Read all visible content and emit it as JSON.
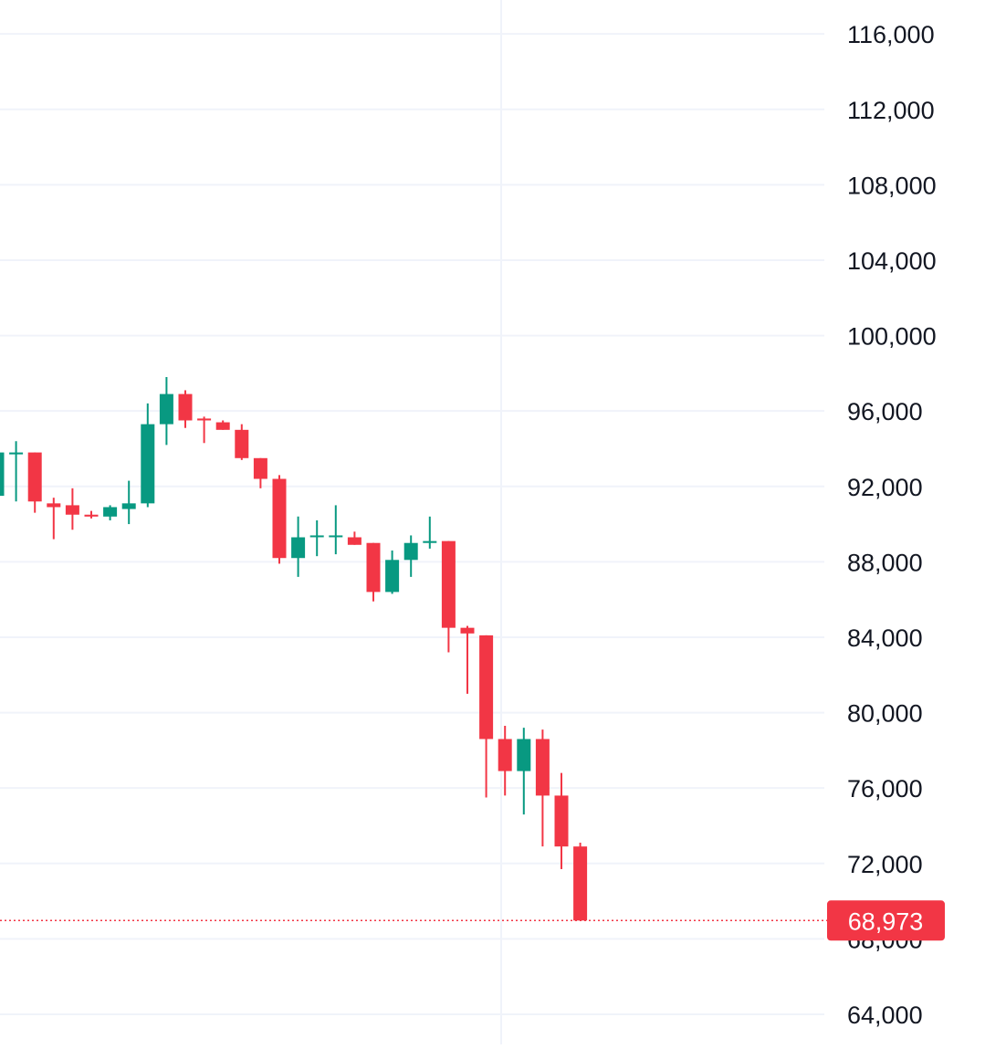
{
  "chart_data": {
    "type": "candlestick",
    "ylim": [
      62400,
      117800
    ],
    "y_ticks": [
      64000,
      68000,
      72000,
      76000,
      80000,
      84000,
      88000,
      92000,
      96000,
      100000,
      104000,
      108000,
      112000,
      116000
    ],
    "y_tick_labels": [
      "64,000",
      "68,000",
      "72,000",
      "76,000",
      "80,000",
      "84,000",
      "88,000",
      "92,000",
      "96,000",
      "100,000",
      "104,000",
      "108,000",
      "112,000",
      "116,000"
    ],
    "grid": true,
    "colors": {
      "up": "#089981",
      "down": "#f23645",
      "grid": "#f0f3fa",
      "text": "#131722"
    },
    "current_price": 68973,
    "current_price_label": "68,973",
    "candles": [
      {
        "o": 91500,
        "h": 93900,
        "l": 91500,
        "c": 93800
      },
      {
        "o": 93700,
        "h": 94400,
        "l": 91200,
        "c": 93800
      },
      {
        "o": 93800,
        "h": 93800,
        "l": 90600,
        "c": 91200
      },
      {
        "o": 91100,
        "h": 91400,
        "l": 89200,
        "c": 90900
      },
      {
        "o": 91000,
        "h": 91900,
        "l": 89700,
        "c": 90500
      },
      {
        "o": 90500,
        "h": 90700,
        "l": 90300,
        "c": 90400
      },
      {
        "o": 90400,
        "h": 91000,
        "l": 90200,
        "c": 90900
      },
      {
        "o": 90800,
        "h": 92300,
        "l": 90000,
        "c": 91100
      },
      {
        "o": 91100,
        "h": 96400,
        "l": 90900,
        "c": 95300
      },
      {
        "o": 95300,
        "h": 97800,
        "l": 94200,
        "c": 96900
      },
      {
        "o": 96900,
        "h": 97100,
        "l": 95100,
        "c": 95500
      },
      {
        "o": 95600,
        "h": 95700,
        "l": 94300,
        "c": 95500
      },
      {
        "o": 95400,
        "h": 95500,
        "l": 95000,
        "c": 95000
      },
      {
        "o": 95000,
        "h": 95300,
        "l": 93400,
        "c": 93500
      },
      {
        "o": 93500,
        "h": 93500,
        "l": 91900,
        "c": 92400
      },
      {
        "o": 92400,
        "h": 92600,
        "l": 87900,
        "c": 88200
      },
      {
        "o": 88200,
        "h": 90400,
        "l": 87200,
        "c": 89300
      },
      {
        "o": 89400,
        "h": 90200,
        "l": 88300,
        "c": 89400
      },
      {
        "o": 89400,
        "h": 91000,
        "l": 88400,
        "c": 89400
      },
      {
        "o": 89300,
        "h": 89600,
        "l": 88900,
        "c": 88900
      },
      {
        "o": 89000,
        "h": 89000,
        "l": 85900,
        "c": 86400
      },
      {
        "o": 86400,
        "h": 88600,
        "l": 86300,
        "c": 88100
      },
      {
        "o": 88100,
        "h": 89400,
        "l": 87200,
        "c": 89000
      },
      {
        "o": 89000,
        "h": 90400,
        "l": 88700,
        "c": 89100
      },
      {
        "o": 89100,
        "h": 89100,
        "l": 83200,
        "c": 84500
      },
      {
        "o": 84500,
        "h": 84600,
        "l": 81000,
        "c": 84200
      },
      {
        "o": 84100,
        "h": 84100,
        "l": 75500,
        "c": 78600
      },
      {
        "o": 78600,
        "h": 79300,
        "l": 75600,
        "c": 76900
      },
      {
        "o": 76900,
        "h": 79200,
        "l": 74600,
        "c": 78600
      },
      {
        "o": 78600,
        "h": 79100,
        "l": 72900,
        "c": 75600
      },
      {
        "o": 75600,
        "h": 76800,
        "l": 71700,
        "c": 72900
      },
      {
        "o": 72900,
        "h": 73100,
        "l": 68973,
        "c": 68973
      }
    ]
  }
}
